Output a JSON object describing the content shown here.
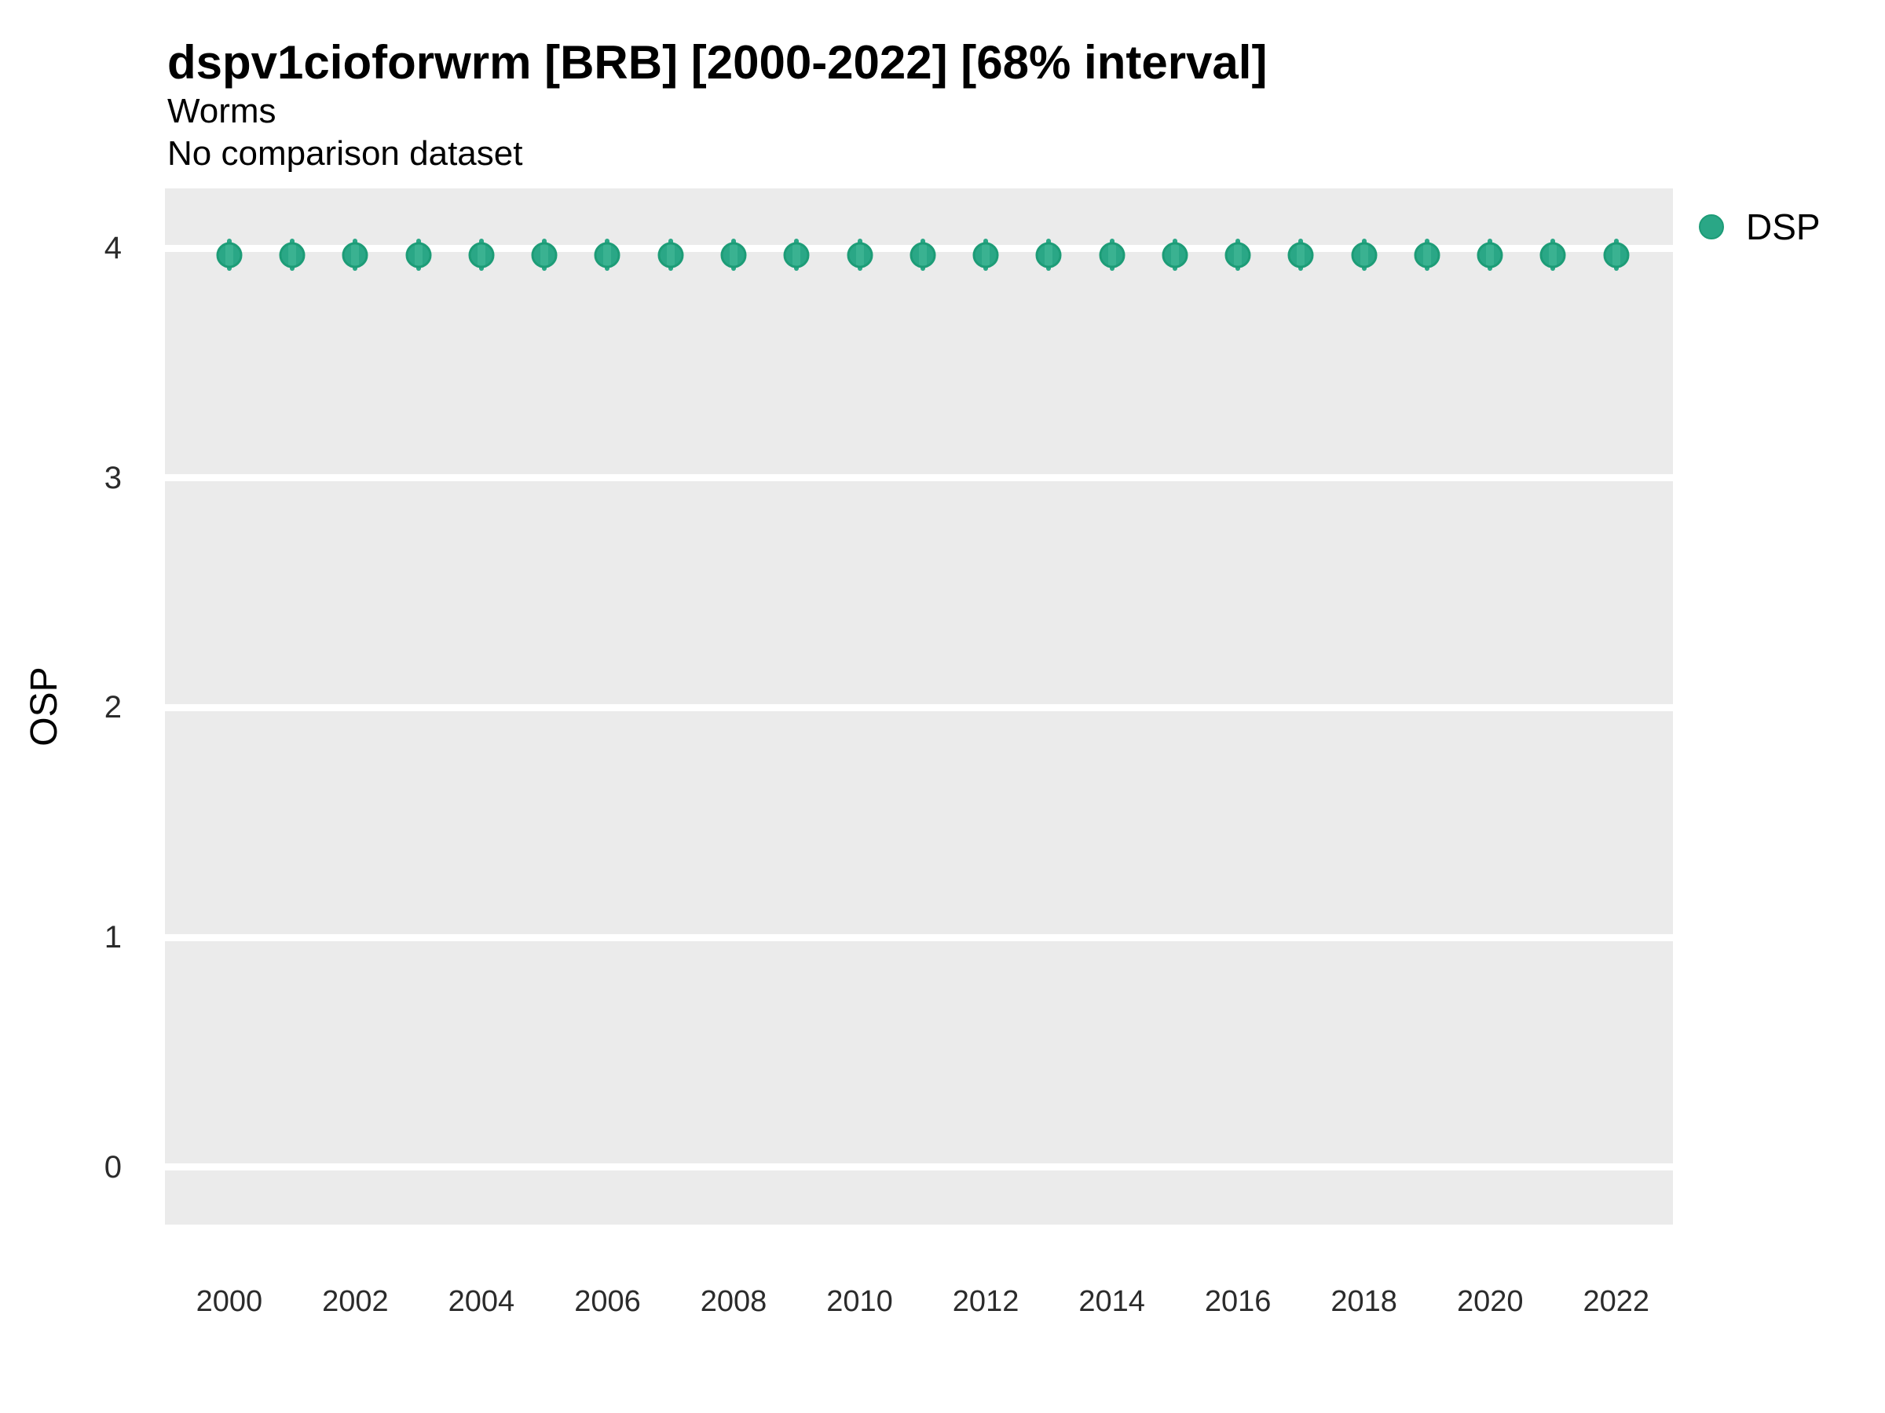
{
  "chart_data": {
    "type": "scatter",
    "title": "dspv1cioforwrm [BRB] [2000-2022] [68% interval]",
    "subtitle": "Worms",
    "comparison_note": "No comparison dataset",
    "xlabel": "",
    "ylabel": "OSP",
    "x_ticks": [
      2000,
      2002,
      2004,
      2006,
      2008,
      2010,
      2012,
      2014,
      2016,
      2018,
      2020,
      2022
    ],
    "y_ticks": [
      0,
      1,
      2,
      3,
      4
    ],
    "xlim": [
      1998.98,
      2022.9
    ],
    "ylim": [
      -0.25,
      4.26
    ],
    "grid": "horizontal-major-only",
    "legend_position": "right-top",
    "interval_level": "68%",
    "legend": {
      "entries": [
        {
          "label": "DSP",
          "color": "#2aa786"
        }
      ]
    },
    "series": [
      {
        "name": "DSP",
        "x": [
          2000,
          2001,
          2002,
          2003,
          2004,
          2005,
          2006,
          2007,
          2008,
          2009,
          2010,
          2011,
          2012,
          2013,
          2014,
          2015,
          2016,
          2017,
          2018,
          2019,
          2020,
          2021,
          2022
        ],
        "y": [
          3.97,
          3.97,
          3.97,
          3.97,
          3.97,
          3.97,
          3.97,
          3.97,
          3.97,
          3.97,
          3.97,
          3.97,
          3.97,
          3.97,
          3.97,
          3.97,
          3.97,
          3.97,
          3.97,
          3.97,
          3.97,
          3.97,
          3.97
        ],
        "y_low": [
          3.9,
          3.9,
          3.9,
          3.9,
          3.9,
          3.9,
          3.9,
          3.9,
          3.9,
          3.9,
          3.9,
          3.9,
          3.9,
          3.9,
          3.9,
          3.9,
          3.9,
          3.9,
          3.9,
          3.9,
          3.9,
          3.9,
          3.9
        ],
        "y_high": [
          4.04,
          4.04,
          4.04,
          4.04,
          4.04,
          4.04,
          4.04,
          4.04,
          4.04,
          4.04,
          4.04,
          4.04,
          4.04,
          4.04,
          4.04,
          4.04,
          4.04,
          4.04,
          4.04,
          4.04,
          4.04,
          4.04,
          4.04
        ]
      }
    ]
  },
  "style": {
    "panel_bg": "#ebebeb",
    "gridline_color": "#ffffff",
    "point_fill": "#2aa786",
    "point_stripe": "#3ab291",
    "point_edge": "#1d9c77",
    "tick_label_color": "#2b2b2b",
    "text_color": "#000000"
  }
}
